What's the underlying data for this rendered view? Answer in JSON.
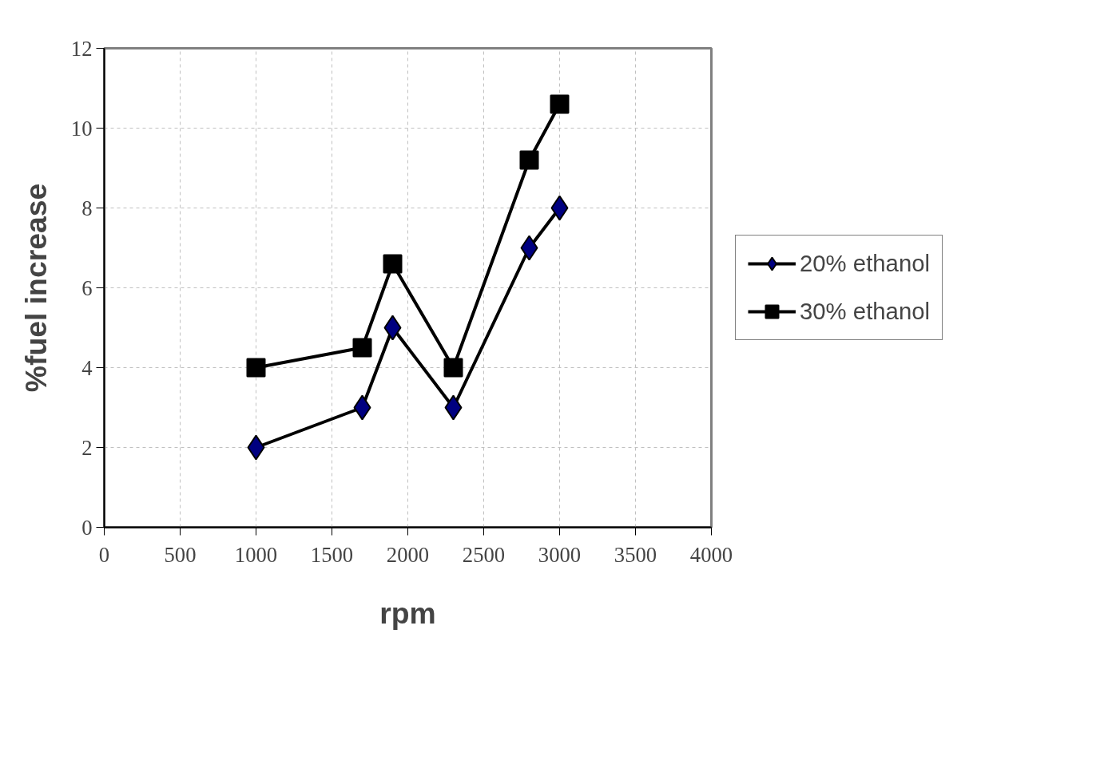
{
  "chart_data": {
    "type": "line",
    "xlabel": "rpm",
    "ylabel": "%fuel increase",
    "x": [
      1000,
      1700,
      1900,
      2300,
      2800,
      3000
    ],
    "series": [
      {
        "name": "20% ethanol",
        "color": "#000080",
        "marker": "diamond",
        "values": [
          2,
          3,
          5,
          3,
          7,
          8
        ]
      },
      {
        "name": "30% ethanol",
        "color": "#000000",
        "marker": "square",
        "values": [
          4,
          4.5,
          6.6,
          4,
          9.2,
          10.6
        ]
      }
    ],
    "xlim": [
      0,
      4000
    ],
    "xticks": [
      0,
      500,
      1000,
      1500,
      2000,
      2500,
      3000,
      3500,
      4000
    ],
    "ylim": [
      0,
      12
    ],
    "yticks": [
      0,
      2,
      4,
      6,
      8,
      10,
      12
    ],
    "grid": true,
    "legend": "right",
    "line_style": "solid"
  }
}
